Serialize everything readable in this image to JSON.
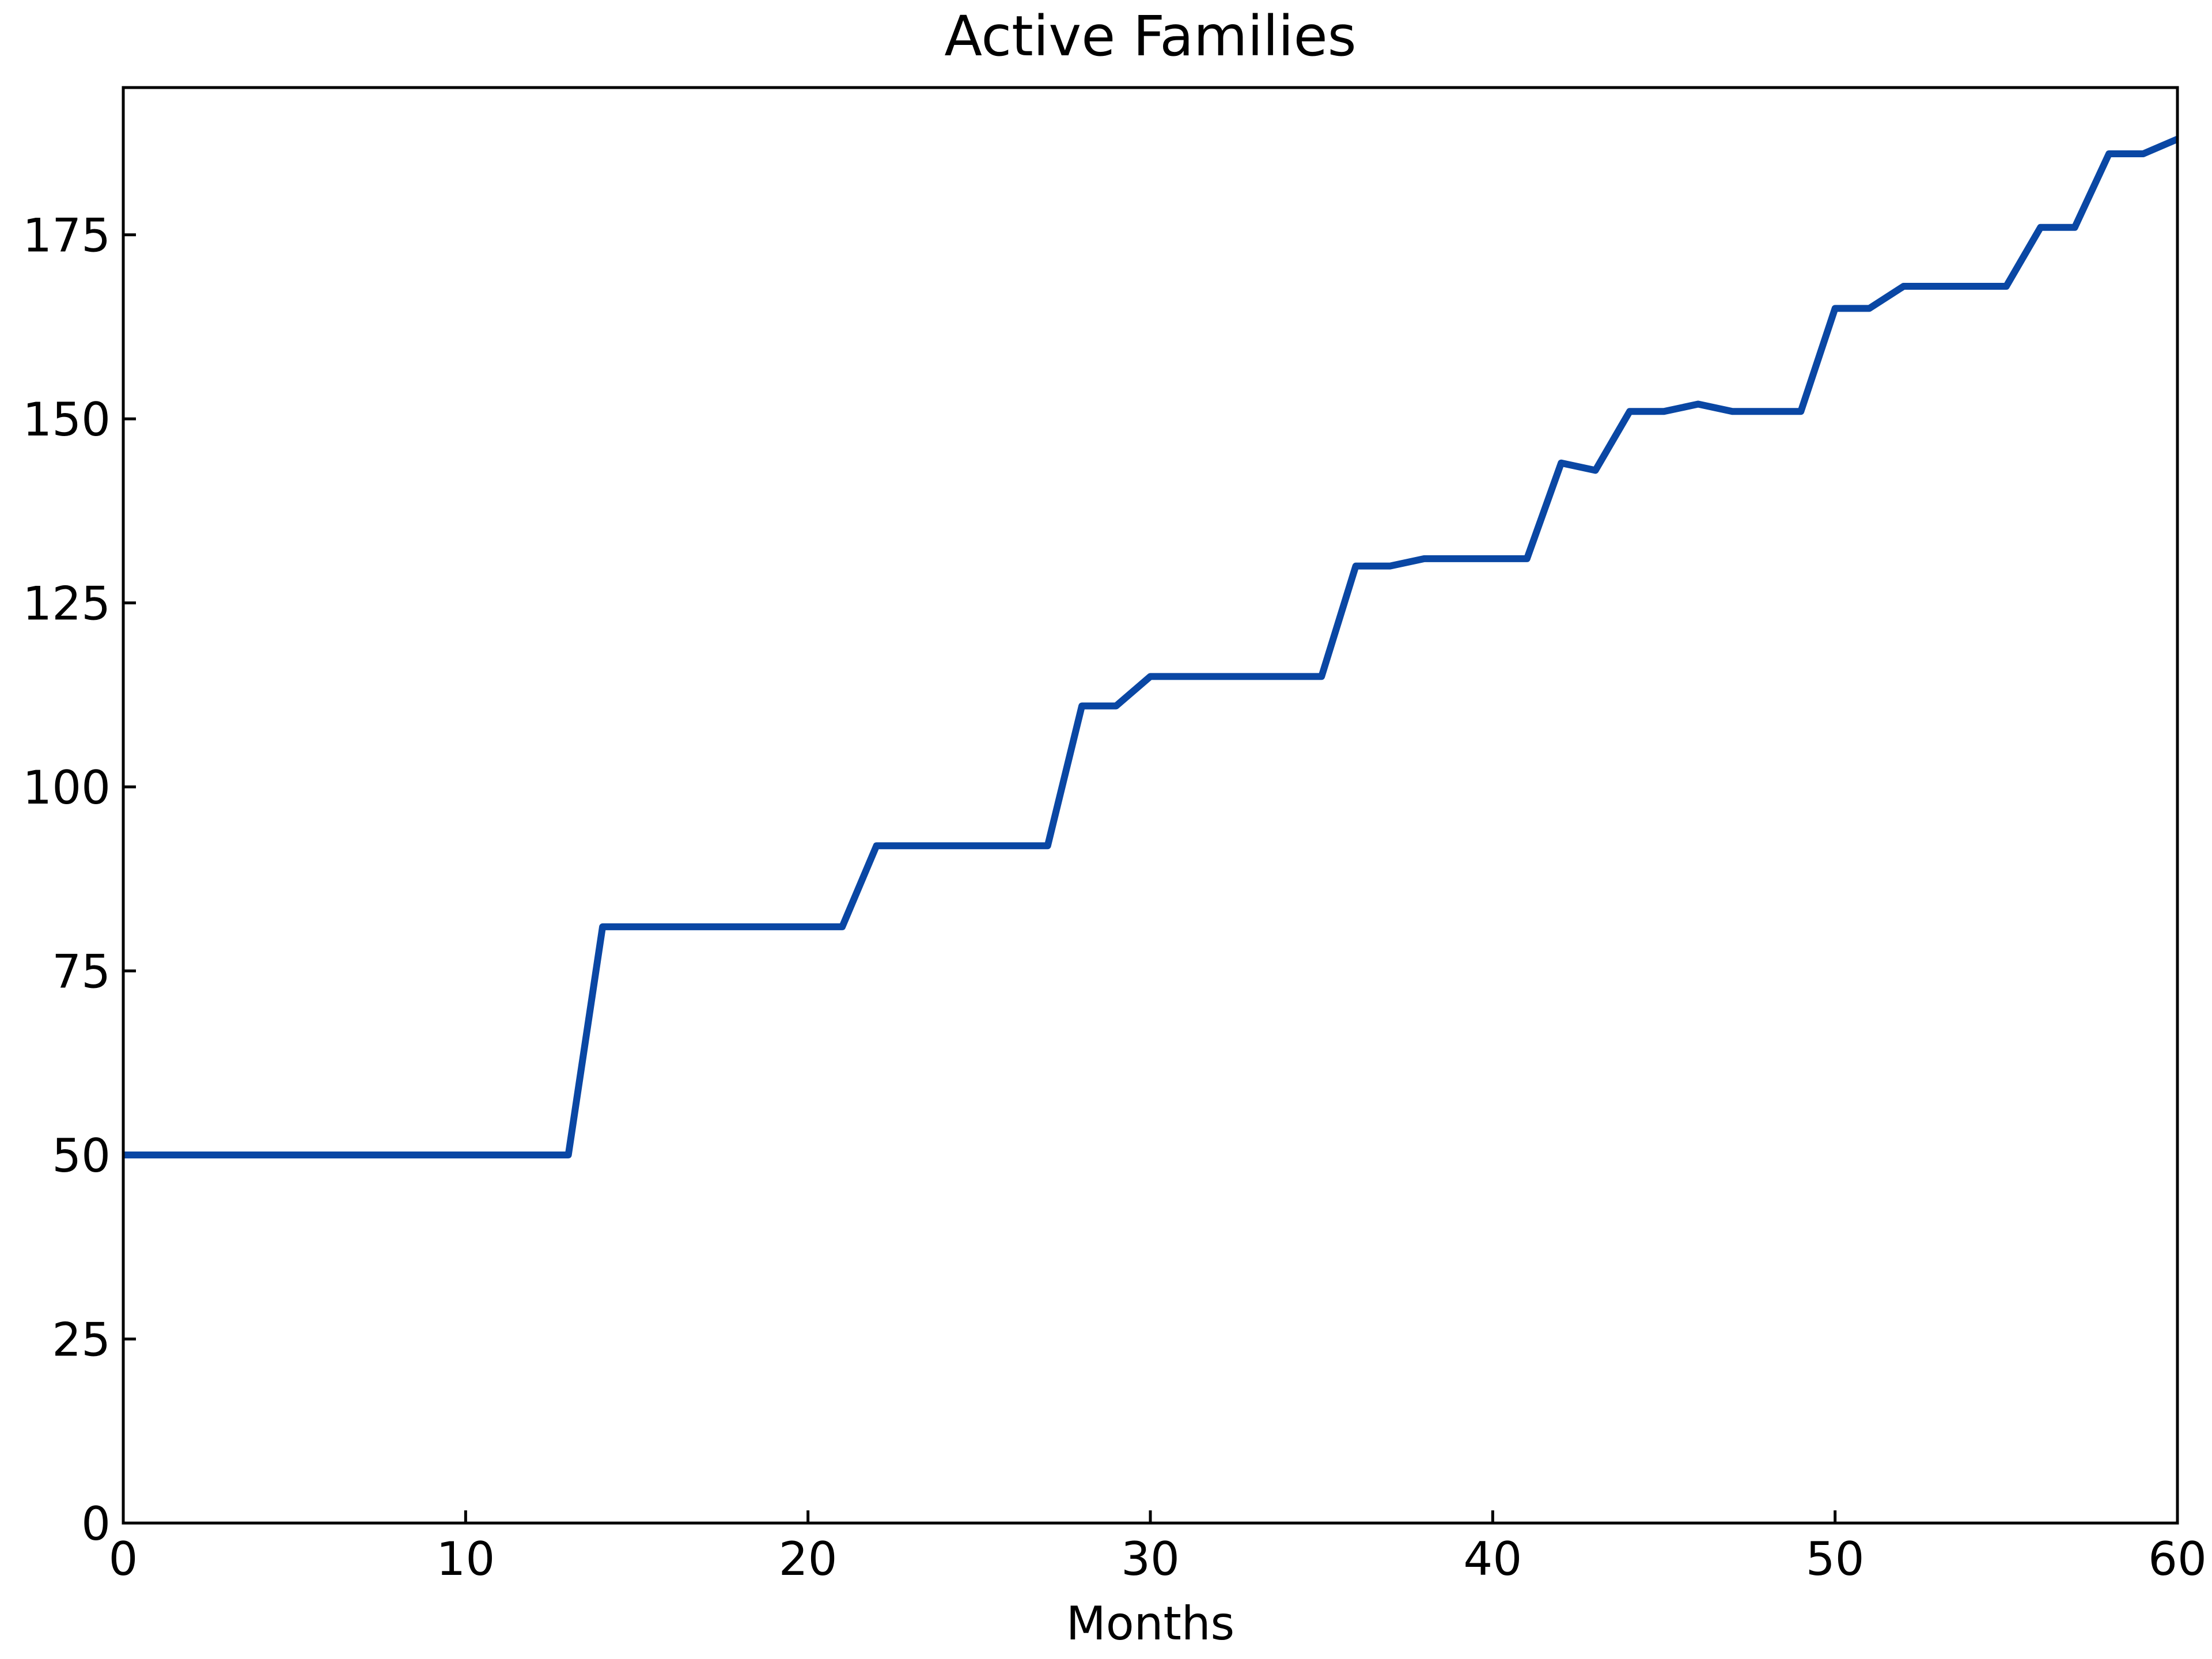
{
  "chart_data": {
    "type": "line",
    "title": "Active Families",
    "xlabel": "Months",
    "ylabel": "",
    "xlim": [
      0,
      60
    ],
    "ylim": [
      0,
      195
    ],
    "xticks": [
      0,
      10,
      20,
      30,
      40,
      50,
      60
    ],
    "yticks": [
      0,
      25,
      50,
      75,
      100,
      125,
      150,
      175
    ],
    "grid": false,
    "legend": "none",
    "colors": {
      "line": "#0a47a4",
      "axis": "#000000"
    },
    "series": [
      {
        "x": [
          0,
          1,
          2,
          3,
          4,
          5,
          6,
          7,
          8,
          9,
          10,
          11,
          12,
          13,
          14,
          15,
          16,
          17,
          18,
          19,
          20,
          21,
          22,
          23,
          24,
          25,
          26,
          27,
          28,
          29,
          30,
          31,
          32,
          33,
          34,
          35,
          36,
          37,
          38,
          39,
          40,
          41,
          42,
          43,
          44,
          45,
          46,
          47,
          48,
          49,
          50,
          51,
          52,
          53,
          54,
          55,
          56,
          57,
          58,
          59,
          60
        ],
        "values": [
          50,
          50,
          50,
          50,
          50,
          50,
          50,
          50,
          50,
          50,
          50,
          50,
          50,
          50,
          81,
          81,
          81,
          81,
          81,
          81,
          81,
          81,
          92,
          92,
          92,
          92,
          92,
          92,
          111,
          111,
          115,
          115,
          115,
          115,
          115,
          115,
          130,
          130,
          131,
          131,
          131,
          131,
          144,
          143,
          151,
          151,
          152,
          151,
          151,
          151,
          165,
          165,
          168,
          168,
          168,
          168,
          176,
          176,
          186,
          186,
          188
        ]
      }
    ]
  }
}
